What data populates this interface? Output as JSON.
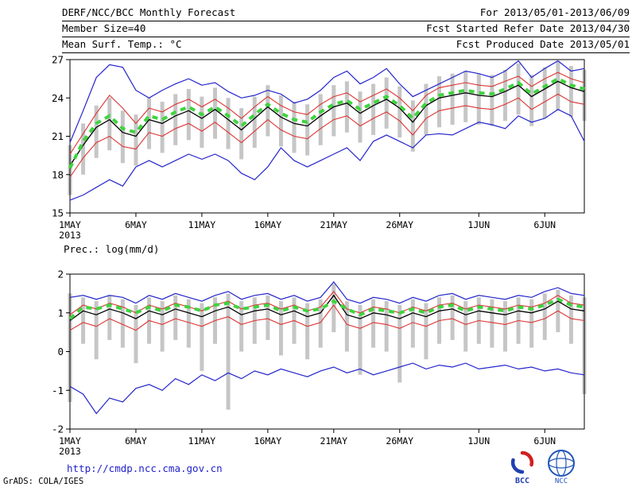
{
  "header": {
    "title": "DERF/NCC/BCC Monthly Forecast",
    "period": "For 2013/05/01-2013/06/09",
    "member_size": "Member Size=40",
    "refer_date": "Fcst Started Refer Date 2013/04/30",
    "produced_date": "Fcst Produced Date 2013/05/01"
  },
  "footer": {
    "grads_credit": "GrADS: COLA/IGES",
    "url": "http://cmdp.ncc.cma.gov.cn",
    "logo_bcc": "BCC",
    "logo_ncc": "NCC"
  },
  "colors": {
    "line_blue": "#2525cc",
    "line_red": "#dd3333",
    "line_black": "#000000",
    "line_green": "#3fd43f",
    "bar_gray": "#c6c6c6",
    "url_blue": "#2222cc"
  },
  "chart_data": [
    {
      "type": "line",
      "title": "Mean Surf. Temp.: °C",
      "xlabel": "",
      "ylabel": "Mean Surf. Temp.: °C",
      "ylim": [
        15,
        27
      ],
      "yticks": [
        15,
        18,
        21,
        24,
        27
      ],
      "grid": false,
      "legend": "none",
      "x_tick_labels": [
        "1MAY",
        "6MAY",
        "11MAY",
        "16MAY",
        "21MAY",
        "26MAY",
        "1JUN",
        "6JUN"
      ],
      "x_tick_positions": [
        0,
        5,
        10,
        15,
        20,
        25,
        31,
        36
      ],
      "x_year_label": "2013",
      "n_points": 40,
      "bars": {
        "name": "ensemble-spread",
        "color": "#c6c6c6",
        "low": [
          16.4,
          18.0,
          19.3,
          19.9,
          18.9,
          18.7,
          20.0,
          19.7,
          20.3,
          20.7,
          20.1,
          20.8,
          20.0,
          19.2,
          20.1,
          21.0,
          20.2,
          19.7,
          19.5,
          20.3,
          21.0,
          21.3,
          20.5,
          21.1,
          21.6,
          20.9,
          19.8,
          21.1,
          21.7,
          21.9,
          22.1,
          21.9,
          21.8,
          22.2,
          22.7,
          21.8,
          22.4,
          23.0,
          22.5,
          22.2
        ],
        "high": [
          20.3,
          22.0,
          23.4,
          24.0,
          23.0,
          22.7,
          24.0,
          23.7,
          24.3,
          24.7,
          24.1,
          24.8,
          24.0,
          23.2,
          24.1,
          25.0,
          24.2,
          23.7,
          23.5,
          24.3,
          25.0,
          25.3,
          24.5,
          25.1,
          25.6,
          24.9,
          23.8,
          25.1,
          25.7,
          25.9,
          26.1,
          25.9,
          25.8,
          26.2,
          26.7,
          25.8,
          26.4,
          26.9,
          26.5,
          26.2
        ]
      },
      "series": [
        {
          "name": "blue_upper",
          "color": "#2525cc",
          "width": 1.2,
          "dash": "",
          "values": [
            20.5,
            23.0,
            25.6,
            26.6,
            26.4,
            24.6,
            24.0,
            24.6,
            25.1,
            25.5,
            25.0,
            25.2,
            24.5,
            24.0,
            24.2,
            24.6,
            24.3,
            23.6,
            23.9,
            24.6,
            25.6,
            26.1,
            25.1,
            25.6,
            26.3,
            25.1,
            24.1,
            24.6,
            25.1,
            25.6,
            26.1,
            25.9,
            25.6,
            26.1,
            26.9,
            25.6,
            26.3,
            26.9,
            26.1,
            26.3
          ]
        },
        {
          "name": "blue_lower",
          "color": "#2525cc",
          "width": 1.2,
          "dash": "",
          "values": [
            16.0,
            16.4,
            17.0,
            17.6,
            17.1,
            18.6,
            19.1,
            18.6,
            19.1,
            19.6,
            19.2,
            19.6,
            19.1,
            18.1,
            17.6,
            18.6,
            20.1,
            19.1,
            18.6,
            19.1,
            19.6,
            20.1,
            19.1,
            20.6,
            21.1,
            20.6,
            20.1,
            21.1,
            21.2,
            21.1,
            21.6,
            22.1,
            21.9,
            21.6,
            22.6,
            22.1,
            22.4,
            23.1,
            22.6,
            20.6
          ]
        },
        {
          "name": "red_upper",
          "color": "#dd3333",
          "width": 1.1,
          "dash": "",
          "values": [
            19.6,
            21.2,
            22.8,
            24.2,
            23.2,
            22.0,
            23.2,
            22.9,
            23.5,
            23.9,
            23.3,
            23.9,
            23.2,
            22.4,
            23.3,
            24.1,
            23.4,
            22.9,
            22.7,
            23.5,
            24.1,
            24.4,
            23.7,
            24.2,
            24.7,
            24.0,
            23.0,
            24.2,
            24.8,
            25.0,
            25.2,
            25.0,
            24.9,
            25.3,
            25.7,
            24.9,
            25.5,
            26.0,
            25.5,
            25.2
          ]
        },
        {
          "name": "red_lower",
          "color": "#dd3333",
          "width": 1.1,
          "dash": "",
          "values": [
            17.8,
            19.3,
            20.5,
            21.0,
            20.2,
            20.0,
            21.3,
            21.0,
            21.6,
            22.0,
            21.4,
            22.1,
            21.3,
            20.5,
            21.4,
            22.3,
            21.5,
            21.0,
            20.8,
            21.6,
            22.3,
            22.6,
            21.8,
            22.4,
            22.9,
            22.2,
            21.1,
            22.4,
            23.0,
            23.2,
            23.4,
            23.2,
            23.1,
            23.5,
            24.0,
            23.1,
            23.7,
            24.3,
            23.7,
            23.5
          ]
        },
        {
          "name": "black_mean",
          "color": "#000000",
          "width": 1.3,
          "dash": "",
          "values": [
            18.7,
            20.3,
            21.7,
            22.3,
            21.3,
            21.0,
            22.3,
            22.0,
            22.6,
            23.0,
            22.4,
            23.1,
            22.3,
            21.5,
            22.4,
            23.3,
            22.5,
            22.0,
            21.8,
            22.6,
            23.3,
            23.6,
            22.8,
            23.4,
            23.9,
            23.2,
            22.1,
            23.4,
            24.0,
            24.2,
            24.4,
            24.2,
            24.1,
            24.5,
            25.0,
            24.1,
            24.7,
            25.3,
            24.8,
            24.5
          ]
        },
        {
          "name": "green_dashed",
          "color": "#3fd43f",
          "width": 4,
          "dash": "7 6",
          "values": [
            18.5,
            20.6,
            22.0,
            22.6,
            21.6,
            21.3,
            22.6,
            22.3,
            22.9,
            23.3,
            22.7,
            23.3,
            22.6,
            21.8,
            22.7,
            23.5,
            22.8,
            22.3,
            22.1,
            22.9,
            23.5,
            23.8,
            23.1,
            23.6,
            24.1,
            23.4,
            22.4,
            23.6,
            24.2,
            24.4,
            24.6,
            24.4,
            24.3,
            24.7,
            25.2,
            24.3,
            24.9,
            25.5,
            25.0,
            24.7
          ]
        }
      ]
    },
    {
      "type": "line",
      "title": "Prec.: log(mm/d)",
      "xlabel": "",
      "ylabel": "Prec.: log(mm/d)",
      "ylim": [
        -2,
        2
      ],
      "yticks": [
        -2,
        -1,
        0,
        1,
        2
      ],
      "grid": false,
      "legend": "none",
      "x_tick_labels": [
        "1MAY",
        "6MAY",
        "11MAY",
        "16MAY",
        "21MAY",
        "26MAY",
        "1JUN",
        "6JUN"
      ],
      "x_tick_positions": [
        0,
        5,
        10,
        15,
        20,
        25,
        31,
        36
      ],
      "x_year_label": "2013",
      "n_points": 40,
      "bars": {
        "name": "ensemble-spread",
        "color": "#c6c6c6",
        "low": [
          -1.3,
          0.2,
          -0.2,
          0.3,
          0.1,
          -0.3,
          0.2,
          0.0,
          0.3,
          0.1,
          -0.5,
          0.2,
          -1.5,
          0.0,
          0.2,
          0.3,
          -0.1,
          0.2,
          -0.2,
          0.1,
          0.5,
          0.0,
          -0.6,
          0.1,
          0.0,
          -0.8,
          0.1,
          -0.2,
          0.2,
          0.3,
          0.0,
          0.2,
          0.1,
          0.0,
          0.2,
          0.1,
          0.3,
          0.5,
          0.2,
          -1.1
        ],
        "high": [
          1.5,
          1.4,
          1.3,
          1.45,
          1.35,
          1.2,
          1.4,
          1.3,
          1.45,
          1.35,
          1.25,
          1.4,
          1.5,
          1.3,
          1.4,
          1.45,
          1.3,
          1.4,
          1.25,
          1.35,
          1.75,
          1.3,
          1.2,
          1.35,
          1.3,
          1.2,
          1.35,
          1.25,
          1.4,
          1.45,
          1.3,
          1.4,
          1.35,
          1.3,
          1.4,
          1.35,
          1.5,
          1.6,
          1.45,
          1.4
        ]
      },
      "series": [
        {
          "name": "blue_upper",
          "color": "#2525cc",
          "width": 1.2,
          "dash": "",
          "values": [
            1.4,
            1.45,
            1.35,
            1.45,
            1.4,
            1.25,
            1.45,
            1.35,
            1.5,
            1.4,
            1.3,
            1.45,
            1.55,
            1.35,
            1.45,
            1.5,
            1.35,
            1.45,
            1.3,
            1.4,
            1.8,
            1.35,
            1.25,
            1.4,
            1.35,
            1.25,
            1.4,
            1.3,
            1.45,
            1.5,
            1.35,
            1.45,
            1.4,
            1.35,
            1.45,
            1.4,
            1.55,
            1.65,
            1.5,
            1.45
          ]
        },
        {
          "name": "blue_lower",
          "color": "#2525cc",
          "width": 1.2,
          "dash": "",
          "values": [
            -0.9,
            -1.1,
            -1.6,
            -1.2,
            -1.3,
            -0.95,
            -0.85,
            -1.0,
            -0.7,
            -0.85,
            -0.6,
            -0.75,
            -0.55,
            -0.7,
            -0.5,
            -0.6,
            -0.45,
            -0.55,
            -0.65,
            -0.5,
            -0.4,
            -0.55,
            -0.45,
            -0.6,
            -0.5,
            -0.4,
            -0.3,
            -0.45,
            -0.35,
            -0.4,
            -0.3,
            -0.45,
            -0.4,
            -0.35,
            -0.45,
            -0.4,
            -0.5,
            -0.45,
            -0.55,
            -0.6
          ]
        },
        {
          "name": "red_upper",
          "color": "#dd3333",
          "width": 1.1,
          "dash": "",
          "values": [
            0.95,
            1.2,
            1.1,
            1.25,
            1.15,
            1.0,
            1.2,
            1.1,
            1.25,
            1.15,
            1.05,
            1.2,
            1.3,
            1.1,
            1.2,
            1.25,
            1.1,
            1.2,
            1.05,
            1.15,
            1.55,
            1.1,
            1.0,
            1.15,
            1.1,
            1.0,
            1.15,
            1.05,
            1.2,
            1.25,
            1.1,
            1.2,
            1.15,
            1.1,
            1.2,
            1.15,
            1.25,
            1.45,
            1.25,
            1.2
          ]
        },
        {
          "name": "red_lower",
          "color": "#dd3333",
          "width": 1.1,
          "dash": "",
          "values": [
            0.55,
            0.75,
            0.65,
            0.85,
            0.7,
            0.55,
            0.8,
            0.7,
            0.85,
            0.75,
            0.65,
            0.8,
            0.9,
            0.7,
            0.8,
            0.85,
            0.7,
            0.8,
            0.65,
            0.75,
            1.2,
            0.7,
            0.6,
            0.75,
            0.7,
            0.6,
            0.75,
            0.65,
            0.8,
            0.85,
            0.7,
            0.8,
            0.75,
            0.7,
            0.8,
            0.75,
            0.85,
            1.05,
            0.85,
            0.8
          ]
        },
        {
          "name": "black_mean",
          "color": "#000000",
          "width": 1.3,
          "dash": "",
          "values": [
            0.8,
            1.05,
            0.95,
            1.1,
            1.0,
            0.85,
            1.05,
            0.95,
            1.1,
            1.0,
            0.9,
            1.05,
            1.15,
            0.95,
            1.05,
            1.1,
            0.95,
            1.05,
            0.9,
            1.0,
            1.45,
            0.95,
            0.85,
            1.0,
            0.95,
            0.85,
            1.0,
            0.9,
            1.05,
            1.1,
            0.95,
            1.05,
            1.0,
            0.95,
            1.05,
            1.0,
            1.1,
            1.3,
            1.1,
            1.05
          ]
        },
        {
          "name": "green_dashed",
          "color": "#3fd43f",
          "width": 4,
          "dash": "7 6",
          "values": [
            0.85,
            1.15,
            1.1,
            1.2,
            1.1,
            1.0,
            1.15,
            1.05,
            1.2,
            1.15,
            1.05,
            1.2,
            1.25,
            1.1,
            1.15,
            1.2,
            1.05,
            1.15,
            1.05,
            1.1,
            1.3,
            1.1,
            0.95,
            1.1,
            1.05,
            1.0,
            1.1,
            1.0,
            1.15,
            1.2,
            1.05,
            1.15,
            1.1,
            1.05,
            1.15,
            1.1,
            1.2,
            1.35,
            1.2,
            1.15
          ]
        }
      ]
    }
  ]
}
